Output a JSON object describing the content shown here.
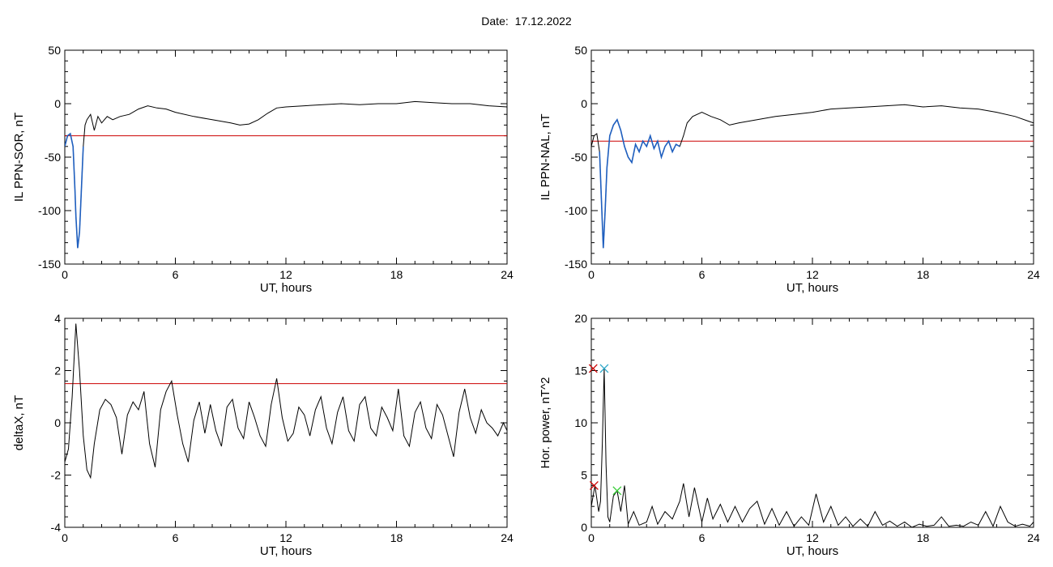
{
  "header": {
    "date_label": "Date:",
    "date_value": "17.12.2022"
  },
  "colors": {
    "trace": "#000000",
    "threshold": "#cc0000",
    "highlight": "#1f5fbf",
    "marker_cyan": "#2aa6c8",
    "marker_green": "#33cc33",
    "marker_red": "#cc0000"
  },
  "chart_data": [
    {
      "type": "line",
      "id": "sor",
      "xlabel": "UT, hours",
      "ylabel": "IL PPN-SOR, nT",
      "xlim": [
        0,
        24
      ],
      "ylim": [
        -150,
        50
      ],
      "xticks": [
        0,
        6,
        12,
        18,
        24
      ],
      "yticks": [
        -150,
        -100,
        -50,
        0,
        50
      ],
      "threshold": -30,
      "series": [
        {
          "x": [
            0,
            0.15,
            0.3,
            0.45,
            0.55,
            0.6,
            0.7,
            0.8,
            0.9,
            1.0,
            1.1,
            1.2,
            1.4,
            1.6,
            1.8,
            2.0,
            2.3,
            2.6,
            3.0,
            3.5,
            4.0,
            4.5,
            5.0,
            5.5,
            6,
            7,
            8,
            9,
            9.5,
            10,
            10.5,
            11,
            11.5,
            12,
            13,
            14,
            15,
            16,
            17,
            18,
            19,
            20,
            21,
            22,
            23,
            24
          ],
          "y": [
            -40,
            -30,
            -28,
            -40,
            -80,
            -105,
            -135,
            -120,
            -80,
            -40,
            -20,
            -15,
            -10,
            -25,
            -12,
            -18,
            -12,
            -15,
            -12,
            -10,
            -5,
            -2,
            -4,
            -5,
            -8,
            -12,
            -15,
            -18,
            -20,
            -19,
            -15,
            -9,
            -4,
            -3,
            -2,
            -1,
            0,
            -1,
            0,
            0,
            2,
            1,
            0,
            0,
            -2,
            -3
          ]
        }
      ],
      "highlight": {
        "x": [
          0,
          0.15,
          0.3,
          0.45,
          0.55,
          0.6,
          0.7,
          0.8,
          0.9,
          1.0
        ],
        "y": [
          -40,
          -30,
          -28,
          -40,
          -80,
          -105,
          -135,
          -120,
          -80,
          -40
        ]
      }
    },
    {
      "type": "line",
      "id": "nal",
      "xlabel": "UT, hours",
      "ylabel": "IL PPN-NAL, nT",
      "xlim": [
        0,
        24
      ],
      "ylim": [
        -150,
        50
      ],
      "xticks": [
        0,
        6,
        12,
        18,
        24
      ],
      "yticks": [
        -150,
        -100,
        -50,
        0,
        50
      ],
      "threshold": -35,
      "series": [
        {
          "x": [
            0,
            0.15,
            0.3,
            0.45,
            0.55,
            0.65,
            0.75,
            0.85,
            1.0,
            1.2,
            1.4,
            1.6,
            1.8,
            2.0,
            2.2,
            2.4,
            2.6,
            2.8,
            3.0,
            3.2,
            3.4,
            3.6,
            3.8,
            4.0,
            4.2,
            4.4,
            4.6,
            4.8,
            5.0,
            5.2,
            5.5,
            6.0,
            6.5,
            7.0,
            7.5,
            8,
            9,
            10,
            11,
            12,
            13,
            14,
            15,
            16,
            17,
            18,
            19,
            20,
            21,
            22,
            23,
            24
          ],
          "y": [
            -40,
            -30,
            -28,
            -45,
            -90,
            -135,
            -100,
            -60,
            -30,
            -20,
            -15,
            -25,
            -40,
            -50,
            -55,
            -38,
            -45,
            -35,
            -40,
            -30,
            -42,
            -35,
            -50,
            -40,
            -35,
            -45,
            -38,
            -40,
            -30,
            -18,
            -12,
            -8,
            -12,
            -15,
            -20,
            -18,
            -15,
            -12,
            -10,
            -8,
            -5,
            -4,
            -3,
            -2,
            -1,
            -3,
            -2,
            -4,
            -5,
            -8,
            -12,
            -18
          ]
        }
      ],
      "highlight": {
        "x": [
          0.45,
          0.55,
          0.65,
          0.75,
          0.85,
          1.0,
          1.2,
          1.4,
          1.6,
          1.8,
          2.0,
          2.2,
          2.4,
          2.6,
          2.8,
          3.0,
          3.2,
          3.4,
          3.6,
          3.8,
          4.0,
          4.2,
          4.4,
          4.6,
          4.8
        ],
        "y": [
          -45,
          -90,
          -135,
          -100,
          -60,
          -30,
          -20,
          -15,
          -25,
          -40,
          -50,
          -55,
          -38,
          -45,
          -35,
          -40,
          -30,
          -42,
          -35,
          -50,
          -40,
          -35,
          -45,
          -38,
          -40
        ]
      }
    },
    {
      "type": "line",
      "id": "deltax",
      "xlabel": "UT, hours",
      "ylabel": "deltaX, nT",
      "xlim": [
        0,
        24
      ],
      "ylim": [
        -4,
        4
      ],
      "xticks": [
        0,
        6,
        12,
        18,
        24
      ],
      "yticks": [
        -4,
        -2,
        0,
        2,
        4
      ],
      "threshold": 1.5,
      "series": [
        {
          "x": [
            0,
            0.2,
            0.4,
            0.6,
            0.8,
            1.0,
            1.2,
            1.4,
            1.6,
            1.9,
            2.2,
            2.5,
            2.8,
            3.1,
            3.4,
            3.7,
            4.0,
            4.3,
            4.6,
            4.9,
            5.2,
            5.5,
            5.8,
            6.1,
            6.4,
            6.7,
            7.0,
            7.3,
            7.6,
            7.9,
            8.2,
            8.5,
            8.8,
            9.1,
            9.4,
            9.7,
            10.0,
            10.3,
            10.6,
            10.9,
            11.2,
            11.5,
            11.8,
            12.1,
            12.4,
            12.7,
            13.0,
            13.3,
            13.6,
            13.9,
            14.2,
            14.5,
            14.8,
            15.1,
            15.4,
            15.7,
            16.0,
            16.3,
            16.6,
            16.9,
            17.2,
            17.5,
            17.8,
            18.1,
            18.4,
            18.7,
            19.0,
            19.3,
            19.6,
            19.9,
            20.2,
            20.5,
            20.8,
            21.1,
            21.4,
            21.7,
            22.0,
            22.3,
            22.6,
            22.9,
            23.2,
            23.5,
            23.8,
            24
          ],
          "y": [
            -1.5,
            -1.0,
            1.0,
            3.8,
            2.0,
            -0.5,
            -1.8,
            -2.1,
            -0.8,
            0.5,
            0.9,
            0.7,
            0.2,
            -1.2,
            0.3,
            0.8,
            0.5,
            1.2,
            -0.8,
            -1.7,
            0.5,
            1.2,
            1.6,
            0.3,
            -0.8,
            -1.5,
            0.1,
            0.8,
            -0.4,
            0.7,
            -0.3,
            -0.9,
            0.6,
            0.9,
            -0.2,
            -0.6,
            0.8,
            0.2,
            -0.5,
            -0.9,
            0.7,
            1.7,
            0.2,
            -0.7,
            -0.4,
            0.6,
            0.3,
            -0.5,
            0.5,
            1.0,
            -0.2,
            -0.8,
            0.4,
            1.0,
            -0.3,
            -0.7,
            0.7,
            1.0,
            -0.2,
            -0.5,
            0.6,
            0.2,
            -0.3,
            1.3,
            -0.5,
            -0.9,
            0.4,
            0.8,
            -0.2,
            -0.6,
            0.7,
            0.3,
            -0.5,
            -1.3,
            0.4,
            1.3,
            0.2,
            -0.4,
            0.5,
            0.0,
            -0.2,
            -0.5,
            0.0,
            -0.3
          ]
        }
      ]
    },
    {
      "type": "line",
      "id": "power",
      "xlabel": "UT, hours",
      "ylabel": "Hor. power, nT^2",
      "xlim": [
        0,
        24
      ],
      "ylim": [
        0,
        20
      ],
      "xticks": [
        0,
        6,
        12,
        18,
        24
      ],
      "yticks": [
        0,
        5,
        10,
        15,
        20
      ],
      "series": [
        {
          "x": [
            0,
            0.2,
            0.4,
            0.5,
            0.6,
            0.7,
            0.8,
            0.9,
            1.0,
            1.2,
            1.4,
            1.6,
            1.8,
            2.0,
            2.3,
            2.6,
            3.0,
            3.3,
            3.6,
            4.0,
            4.4,
            4.8,
            5.0,
            5.3,
            5.6,
            6.0,
            6.3,
            6.6,
            7.0,
            7.4,
            7.8,
            8.2,
            8.6,
            9.0,
            9.4,
            9.8,
            10.2,
            10.6,
            11.0,
            11.4,
            11.8,
            12.2,
            12.6,
            13.0,
            13.4,
            13.8,
            14.2,
            14.6,
            15.0,
            15.4,
            15.8,
            16.2,
            16.6,
            17.0,
            17.4,
            17.8,
            18.2,
            18.6,
            19.0,
            19.4,
            19.8,
            20.2,
            20.6,
            21.0,
            21.4,
            21.8,
            22.2,
            22.6,
            23.0,
            23.4,
            23.8,
            24
          ],
          "y": [
            2.0,
            4.0,
            1.5,
            2.5,
            8.0,
            15.2,
            6.0,
            1.0,
            0.5,
            3.0,
            3.5,
            1.5,
            4.0,
            0.3,
            1.5,
            0.2,
            0.5,
            2.0,
            0.3,
            1.5,
            0.8,
            2.5,
            4.2,
            1.0,
            3.8,
            0.5,
            2.8,
            0.8,
            2.2,
            0.5,
            2.0,
            0.5,
            1.8,
            2.5,
            0.3,
            1.8,
            0.2,
            1.5,
            0.1,
            1.0,
            0.2,
            3.2,
            0.5,
            2.0,
            0.2,
            1.0,
            0.1,
            0.8,
            0.1,
            1.5,
            0.2,
            0.6,
            0.1,
            0.5,
            0.0,
            0.3,
            0.1,
            0.2,
            1.0,
            0.1,
            0.2,
            0.1,
            0.5,
            0.2,
            1.5,
            0.1,
            2.0,
            0.5,
            0.1,
            0.3,
            0.1,
            0.5
          ]
        }
      ],
      "markers": [
        {
          "x": 0.7,
          "y": 15.2,
          "shape": "x",
          "color": "cyan"
        },
        {
          "x": 0.1,
          "y": 15.2,
          "shape": "x",
          "color": "red"
        },
        {
          "x": 0.15,
          "y": 4.0,
          "shape": "x",
          "color": "red"
        },
        {
          "x": 1.4,
          "y": 3.5,
          "shape": "x",
          "color": "green"
        }
      ]
    }
  ]
}
